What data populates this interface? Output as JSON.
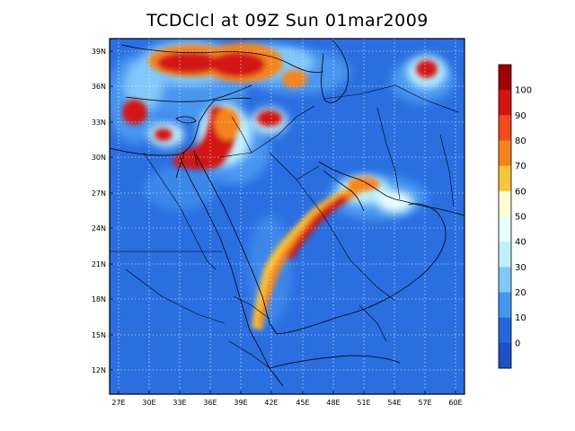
{
  "title": "TCDClcl at 09Z Sun 01mar2009",
  "lat_labels": [
    "39N",
    "36N",
    "33N",
    "30N",
    "27N",
    "24N",
    "21N",
    "18N",
    "15N",
    "12N"
  ],
  "lon_labels": [
    "27E",
    "30E",
    "33E",
    "36E",
    "39E",
    "42E",
    "45E",
    "48E",
    "51E",
    "54E",
    "57E",
    "60E"
  ],
  "colorbar": {
    "labels": [
      "100",
      "90",
      "80",
      "70",
      "60",
      "50",
      "40",
      "30",
      "20",
      "10",
      "0"
    ],
    "colors": [
      "#a00000",
      "#d21414",
      "#f04a1e",
      "#f5841e",
      "#fac33c",
      "#ffffd2",
      "#e6ffff",
      "#bef0ff",
      "#82c8fa",
      "#4696f0",
      "#2468dc",
      "#1e50c8"
    ]
  },
  "colors": {
    "background_field": "#2a6ee0",
    "grid": "#ffffff",
    "boundary": "#000000"
  }
}
